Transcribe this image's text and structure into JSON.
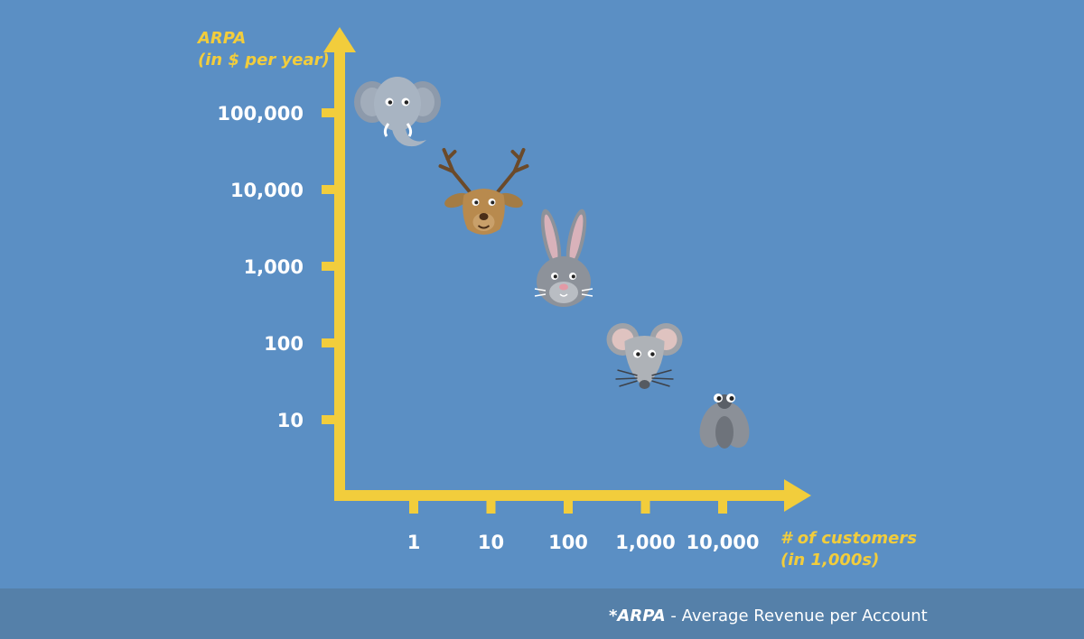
{
  "chart_data": {
    "type": "scatter",
    "title": "",
    "ylabel": [
      "ARPA",
      "(in $ per year)"
    ],
    "xlabel": [
      "# of customers",
      "(in 1,000s)"
    ],
    "x_scale": "log",
    "y_scale": "log",
    "x_ticks": [
      1,
      10,
      100,
      1000,
      10000
    ],
    "x_tick_labels": [
      "1",
      "10",
      "100",
      "1,000",
      "10,000"
    ],
    "y_ticks": [
      10,
      100,
      1000,
      10000,
      100000
    ],
    "y_tick_labels": [
      "10",
      "100",
      "1,000",
      "10,000",
      "100,000"
    ],
    "grid": false,
    "legend": "none",
    "points": [
      {
        "icon": "elephant-icon",
        "x": 1,
        "y": 100000
      },
      {
        "icon": "deer-icon",
        "x": 10,
        "y": 10000
      },
      {
        "icon": "rabbit-icon",
        "x": 100,
        "y": 1000
      },
      {
        "icon": "mouse-icon",
        "x": 1000,
        "y": 100
      },
      {
        "icon": "fly-icon",
        "x": 10000,
        "y": 10
      }
    ]
  },
  "colors": {
    "background": "#5b8fc4",
    "axis": "#f2cd3c",
    "footer": "#5580a9",
    "labels": "#ffffff"
  },
  "footnote": {
    "term": "*ARPA",
    "definition": "- Average Revenue per Account"
  }
}
